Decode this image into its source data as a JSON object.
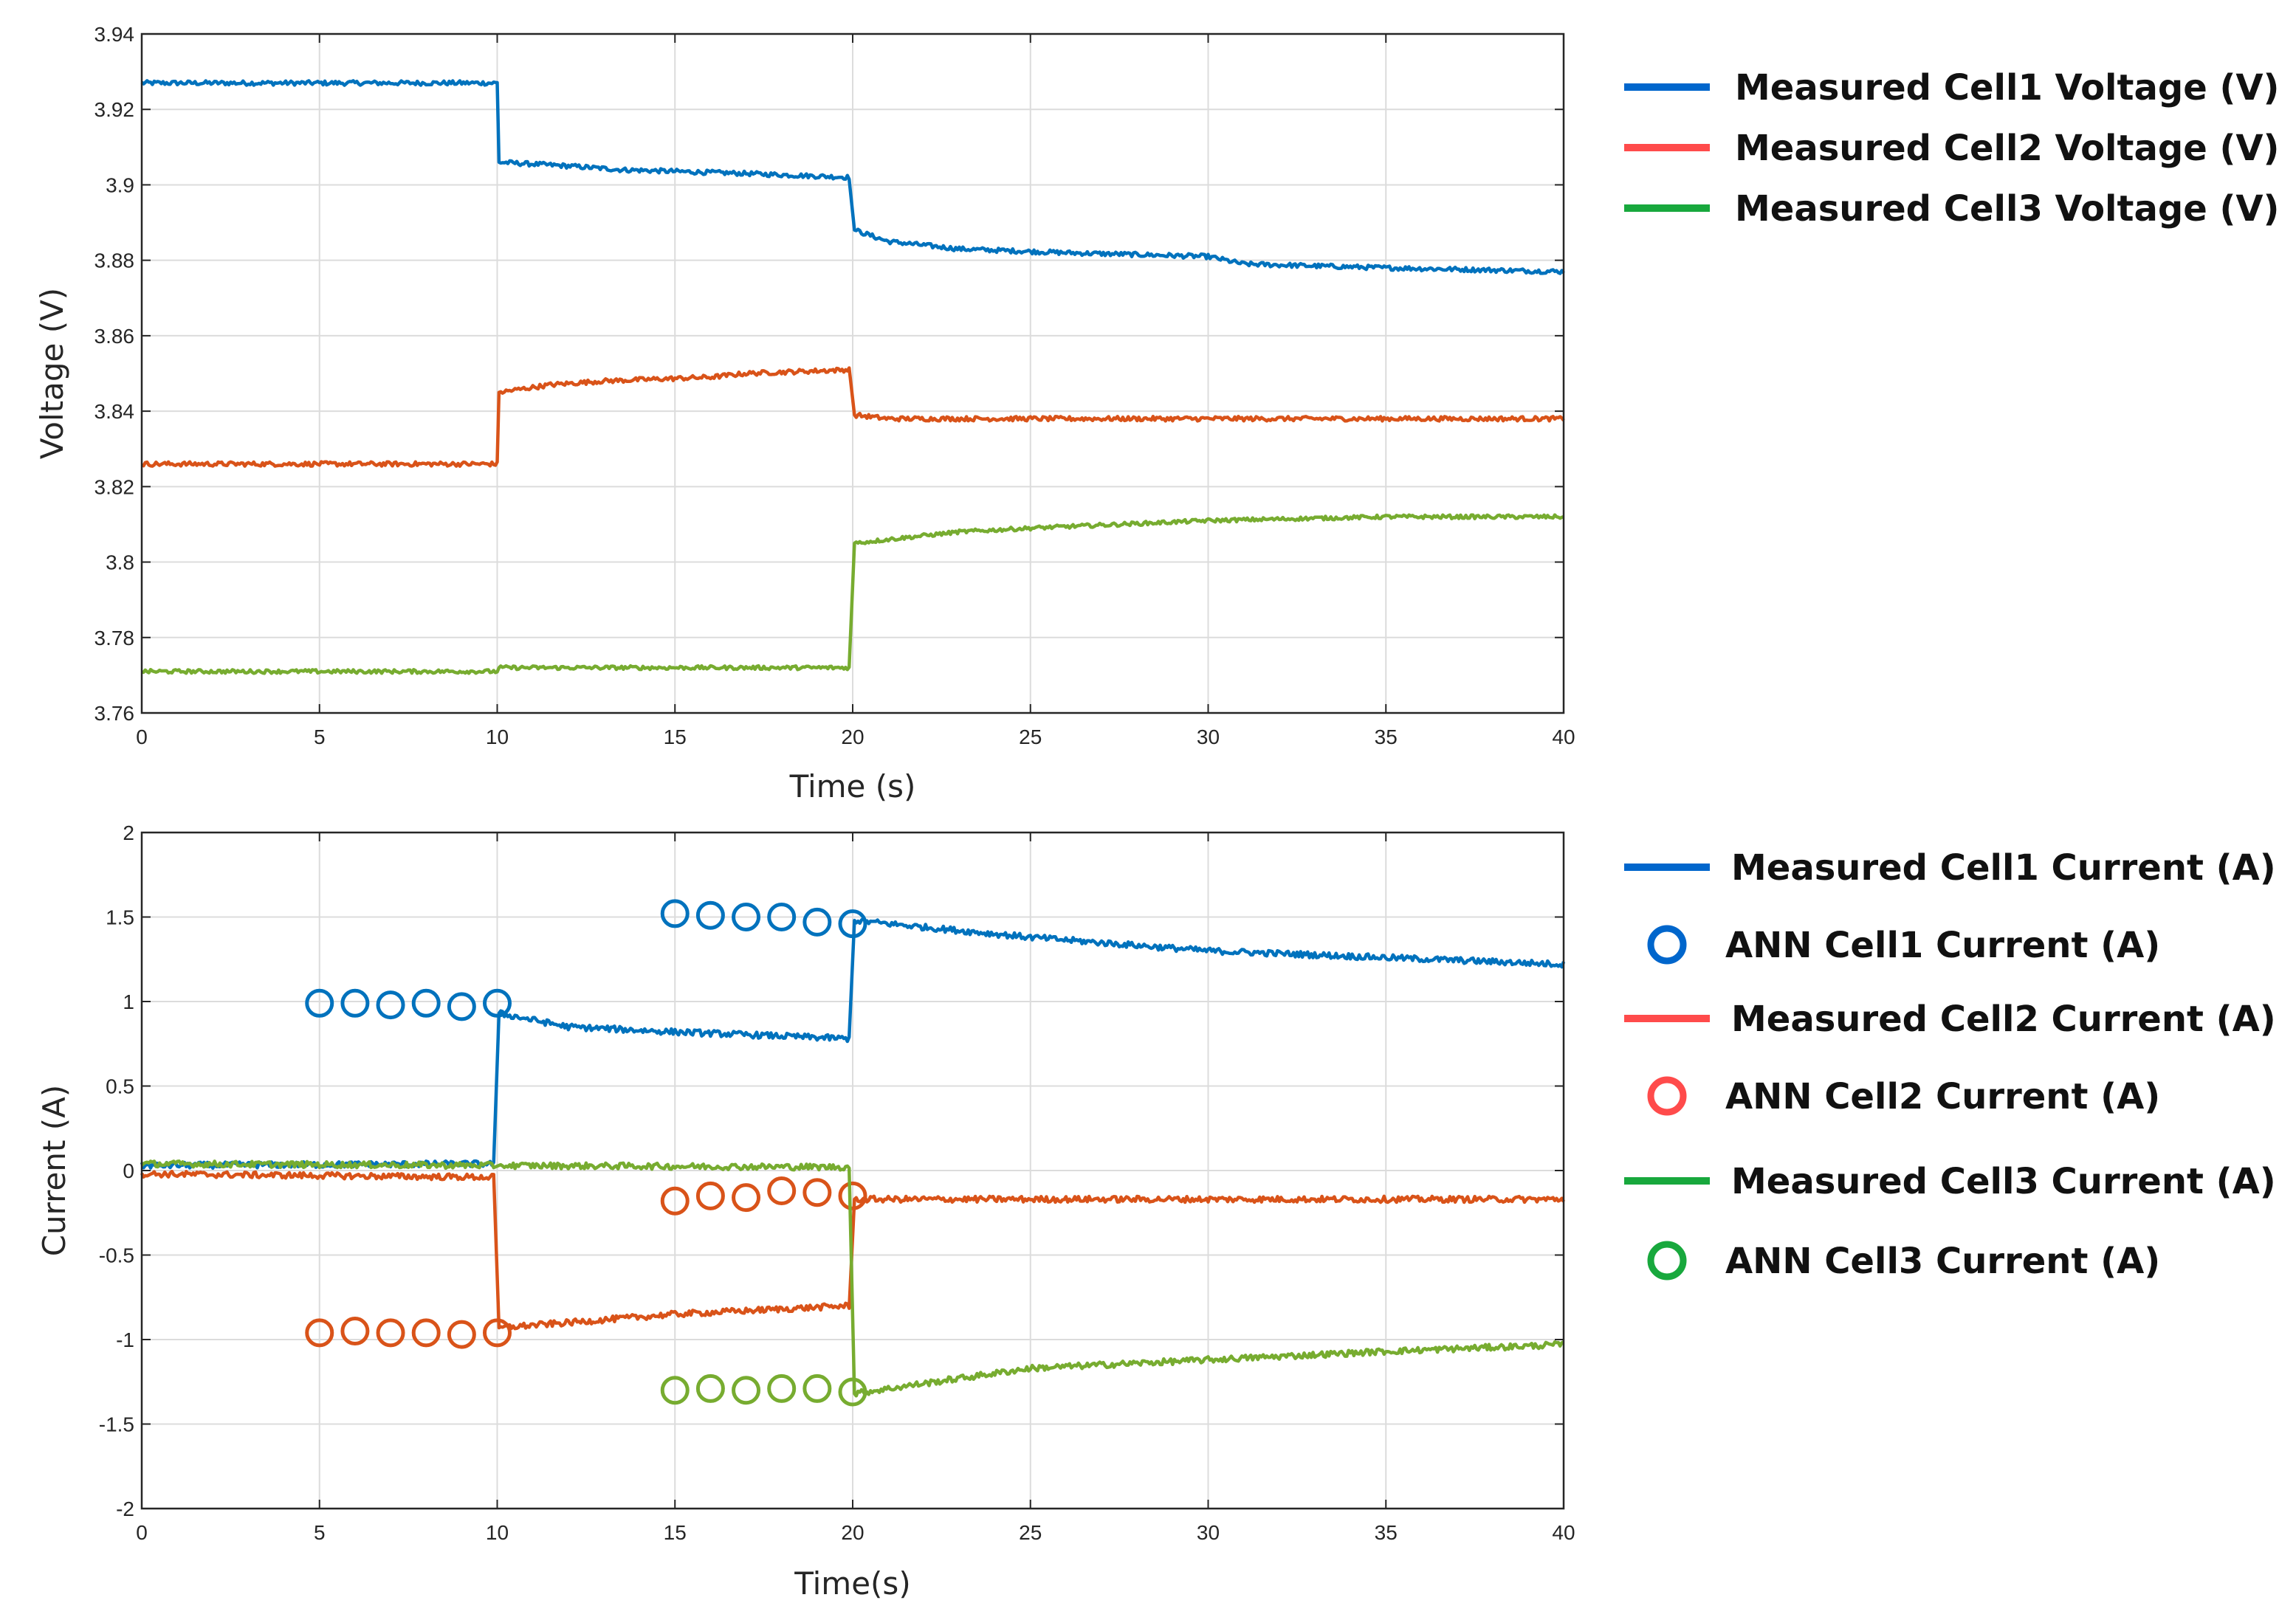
{
  "chart_data": [
    {
      "type": "line",
      "id": "voltage",
      "title": "",
      "xlabel": "Time (s)",
      "ylabel": "Voltage (V)",
      "xlim": [
        0,
        40
      ],
      "ylim": [
        3.76,
        3.94
      ],
      "grid": true,
      "xticks": [
        0,
        5,
        10,
        15,
        20,
        25,
        30,
        35,
        40
      ],
      "xtick_labels": [
        "0",
        "5",
        "10",
        "15",
        "20",
        "25",
        "30",
        "35",
        "40"
      ],
      "yticks": [
        3.76,
        3.78,
        3.8,
        3.82,
        3.84,
        3.86,
        3.88,
        3.9,
        3.92,
        3.94
      ],
      "ytick_labels": [
        "3.76",
        "3.78",
        "3.8",
        "3.82",
        "3.84",
        "3.86",
        "3.88",
        "3.9",
        "3.92",
        "3.94"
      ],
      "legend_position": "right",
      "series": [
        {
          "name": "Measured Cell1 Voltage (V)",
          "style": "line",
          "color": "#0072BD",
          "legend_color": "#0066CC",
          "noise": 0.0006,
          "points": [
            [
              0,
              3.927
            ],
            [
              10,
              3.927
            ],
            [
              10.05,
              3.906
            ],
            [
              12,
              3.905
            ],
            [
              13.5,
              3.904
            ],
            [
              17,
              3.903
            ],
            [
              19.9,
              3.902
            ],
            [
              20.05,
              3.888
            ],
            [
              21,
              3.885
            ],
            [
              23,
              3.883
            ],
            [
              26,
              3.882
            ],
            [
              30,
              3.881
            ],
            [
              31,
              3.879
            ],
            [
              35,
              3.878
            ],
            [
              40,
              3.877
            ]
          ]
        },
        {
          "name": "Measured Cell2 Voltage (V)",
          "style": "line",
          "color": "#D95319",
          "legend_color": "#FF4B4B",
          "noise": 0.0006,
          "points": [
            [
              0,
              3.826
            ],
            [
              10,
              3.826
            ],
            [
              10.05,
              3.845
            ],
            [
              11.5,
              3.847
            ],
            [
              13,
              3.848
            ],
            [
              16,
              3.849
            ],
            [
              17,
              3.85
            ],
            [
              19.9,
              3.851
            ],
            [
              20.05,
              3.839
            ],
            [
              21,
              3.838
            ],
            [
              30,
              3.838
            ],
            [
              40,
              3.838
            ]
          ]
        },
        {
          "name": "Measured Cell3 Voltage (V)",
          "style": "line",
          "color": "#77AC30",
          "legend_color": "#18A83D",
          "noise": 0.0005,
          "points": [
            [
              0,
              3.771
            ],
            [
              10,
              3.771
            ],
            [
              10.05,
              3.772
            ],
            [
              19.9,
              3.772
            ],
            [
              20.05,
              3.805
            ],
            [
              21,
              3.806
            ],
            [
              23,
              3.808
            ],
            [
              25,
              3.809
            ],
            [
              30,
              3.811
            ],
            [
              35,
              3.812
            ],
            [
              40,
              3.812
            ]
          ]
        }
      ]
    },
    {
      "type": "line",
      "id": "current",
      "title": "",
      "xlabel": "Time(s)",
      "ylabel": "Current (A)",
      "xlim": [
        0,
        40
      ],
      "ylim": [
        -2,
        2
      ],
      "grid": true,
      "xticks": [
        0,
        5,
        10,
        15,
        20,
        25,
        30,
        35,
        40
      ],
      "xtick_labels": [
        "0",
        "5",
        "10",
        "15",
        "20",
        "25",
        "30",
        "35",
        "40"
      ],
      "yticks": [
        -2,
        -1.5,
        -1,
        -0.5,
        0,
        0.5,
        1,
        1.5,
        2
      ],
      "ytick_labels": [
        "-2",
        "-1.5",
        "-1",
        "-0.5",
        "0",
        "0.5",
        "1",
        "1.5",
        "2"
      ],
      "legend_position": "right",
      "series": [
        {
          "name": "Measured Cell1 Current (A)",
          "style": "line",
          "color": "#0072BD",
          "legend_color": "#0066CC",
          "noise": 0.018,
          "points": [
            [
              0,
              0.03
            ],
            [
              9.9,
              0.04
            ],
            [
              10.05,
              0.93
            ],
            [
              12,
              0.85
            ],
            [
              15,
              0.82
            ],
            [
              19.9,
              0.78
            ],
            [
              20.05,
              1.48
            ],
            [
              22,
              1.44
            ],
            [
              25,
              1.38
            ],
            [
              30,
              1.3
            ],
            [
              35,
              1.26
            ],
            [
              40,
              1.22
            ]
          ]
        },
        {
          "name": "ANN Cell1 Current (A)",
          "style": "marker",
          "color": "#0072BD",
          "legend_color": "#0066CC",
          "points": [
            [
              5,
              0.99
            ],
            [
              6,
              0.99
            ],
            [
              7,
              0.98
            ],
            [
              8,
              0.99
            ],
            [
              9,
              0.97
            ],
            [
              10,
              0.99
            ],
            [
              15,
              1.52
            ],
            [
              16,
              1.51
            ],
            [
              17,
              1.5
            ],
            [
              18,
              1.5
            ],
            [
              19,
              1.47
            ],
            [
              20,
              1.46
            ]
          ]
        },
        {
          "name": "Measured Cell2 Current (A)",
          "style": "line",
          "color": "#D95319",
          "legend_color": "#FF4B4B",
          "noise": 0.018,
          "points": [
            [
              0,
              -0.02
            ],
            [
              9.9,
              -0.04
            ],
            [
              10.05,
              -0.93
            ],
            [
              12,
              -0.9
            ],
            [
              15,
              -0.85
            ],
            [
              19.9,
              -0.8
            ],
            [
              20.05,
              -0.17
            ],
            [
              25,
              -0.17
            ],
            [
              30,
              -0.17
            ],
            [
              40,
              -0.17
            ]
          ]
        },
        {
          "name": "ANN Cell2 Current (A)",
          "style": "marker",
          "color": "#D95319",
          "legend_color": "#FF4B4B",
          "points": [
            [
              5,
              -0.96
            ],
            [
              6,
              -0.95
            ],
            [
              7,
              -0.96
            ],
            [
              8,
              -0.96
            ],
            [
              9,
              -0.97
            ],
            [
              10,
              -0.96
            ],
            [
              15,
              -0.18
            ],
            [
              16,
              -0.15
            ],
            [
              17,
              -0.16
            ],
            [
              18,
              -0.12
            ],
            [
              19,
              -0.13
            ],
            [
              20,
              -0.15
            ]
          ]
        },
        {
          "name": "Measured Cell3 Current (A)",
          "style": "line",
          "color": "#77AC30",
          "legend_color": "#18A83D",
          "noise": 0.018,
          "points": [
            [
              0,
              0.04
            ],
            [
              9.9,
              0.03
            ],
            [
              10.05,
              0.03
            ],
            [
              19.9,
              0.02
            ],
            [
              20.05,
              -1.32
            ],
            [
              22,
              -1.26
            ],
            [
              25,
              -1.17
            ],
            [
              30,
              -1.12
            ],
            [
              35,
              -1.07
            ],
            [
              40,
              -1.03
            ]
          ]
        },
        {
          "name": "ANN Cell3 Current (A)",
          "style": "marker",
          "color": "#77AC30",
          "legend_color": "#18A83D",
          "points": [
            [
              15,
              -1.3
            ],
            [
              16,
              -1.29
            ],
            [
              17,
              -1.3
            ],
            [
              18,
              -1.29
            ],
            [
              19,
              -1.29
            ],
            [
              20,
              -1.31
            ]
          ]
        }
      ]
    }
  ]
}
